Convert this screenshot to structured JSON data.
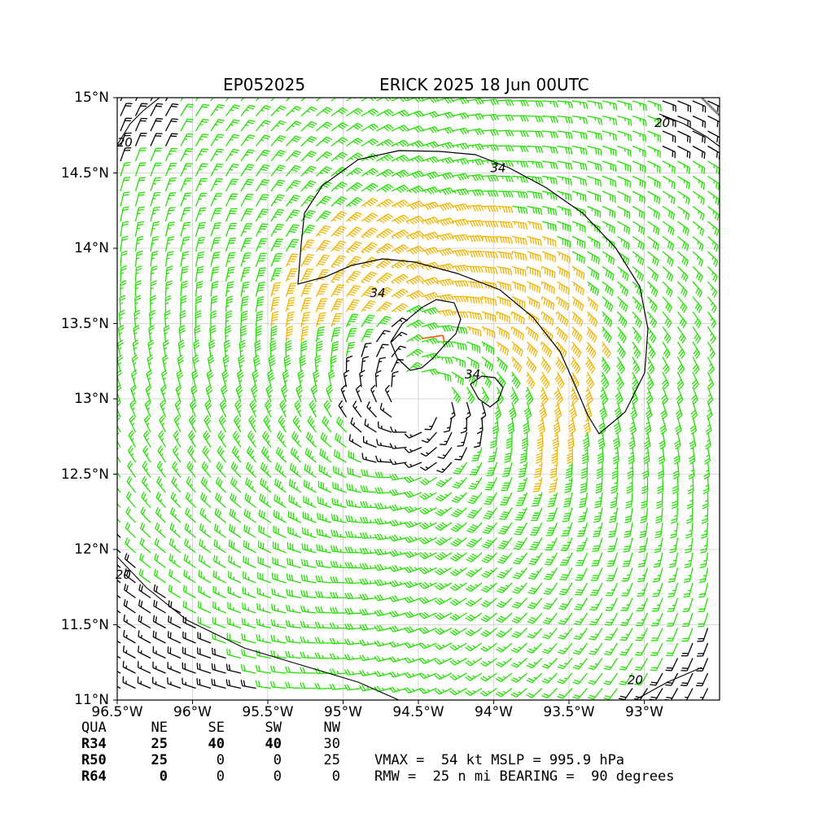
{
  "title": {
    "left": "EP052025",
    "right": "ERICK 2025 18 Jun 00UTC"
  },
  "axes": {
    "lon_range": [
      -96.5,
      -92.5
    ],
    "lat_range": [
      11.0,
      15.0
    ],
    "x_ticks": [
      {
        "value": -96.5,
        "label": "96.5°W"
      },
      {
        "value": -96.0,
        "label": "96°W"
      },
      {
        "value": -95.5,
        "label": "95.5°W"
      },
      {
        "value": -95.0,
        "label": "95°W"
      },
      {
        "value": -94.5,
        "label": "94.5°W"
      },
      {
        "value": -94.0,
        "label": "94°W"
      },
      {
        "value": -93.5,
        "label": "93.5°W"
      },
      {
        "value": -93.0,
        "label": "93°W"
      }
    ],
    "y_ticks": [
      {
        "value": 15.0,
        "label": "15°N"
      },
      {
        "value": 14.5,
        "label": "14.5°N"
      },
      {
        "value": 14.0,
        "label": "14°N"
      },
      {
        "value": 13.5,
        "label": "13.5°N"
      },
      {
        "value": 13.0,
        "label": "13°N"
      },
      {
        "value": 12.5,
        "label": "12.5°N"
      },
      {
        "value": 12.0,
        "label": "12°N"
      },
      {
        "value": 11.5,
        "label": "11.5°N"
      },
      {
        "value": 11.0,
        "label": "11°N"
      }
    ],
    "grid": true
  },
  "storm": {
    "center_lon": -94.5,
    "center_lat": 13.0,
    "rmw_nmi": 25,
    "bearing_deg": 90,
    "vmax_kt": 54
  },
  "colors": {
    "calm": "#000000",
    "tropical_storm": "#22e000",
    "gale_50": "#f0b400",
    "storm_64": "#ff4a00",
    "contour": "#000000",
    "grid": "#cccccc"
  },
  "contour_labels": [
    {
      "text": "34",
      "lon": -93.97,
      "lat": 14.53
    },
    {
      "text": "34",
      "lon": -94.77,
      "lat": 13.7
    },
    {
      "text": "34",
      "lon": -94.14,
      "lat": 13.16
    },
    {
      "text": "20",
      "lon": -96.45,
      "lat": 14.7
    },
    {
      "text": "20",
      "lon": -92.88,
      "lat": 14.83
    },
    {
      "text": "20",
      "lon": -96.46,
      "lat": 11.83
    },
    {
      "text": "20",
      "lon": -93.06,
      "lat": 11.13
    }
  ],
  "table": {
    "headers": [
      "QUA",
      "NE",
      "SE",
      "SW",
      "NW"
    ],
    "rows": [
      {
        "label": "R34",
        "values": [
          "25",
          "40",
          "40",
          "30"
        ]
      },
      {
        "label": "R50",
        "values": [
          "25",
          "0",
          "0",
          "25"
        ]
      },
      {
        "label": "R64",
        "values": [
          "0",
          "0",
          "0",
          "0"
        ]
      }
    ]
  },
  "summary": {
    "line1": "VMAX =  54 kt MSLP = 995.9 hPa",
    "line2": "RMW =  25 n mi BEARING =  90 degrees"
  }
}
